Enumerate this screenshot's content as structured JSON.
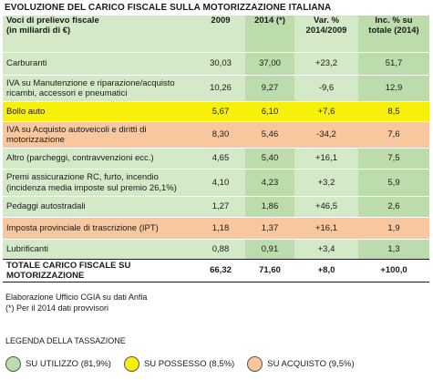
{
  "title": "EVOLUZIONE DEL CARICO FISCALE SULLA MOTORIZZAZIONE ITALIANA",
  "colors": {
    "green": "#bcdcab",
    "green_light": "#d3e9c7",
    "yellow": "#f8f008",
    "orange": "#f9c79e"
  },
  "table": {
    "headers": {
      "label": "Voci di prelievo fiscale\n(in miliardi di €)",
      "y2009": "2009",
      "y2014": "2014 (*)",
      "var": "Var. %\n2014/2009",
      "inc": "Inc. % su\ntotale (2014)"
    },
    "rows": [
      {
        "label": "Carburanti",
        "v2009": "30,03",
        "v2014": "37,00",
        "var": "+23,2",
        "inc": "51,7",
        "category": "utilizzo"
      },
      {
        "label": "IVA su Manutenzione e riparazione/acquisto\nricambi, accessori e pneumatici",
        "v2009": "10,26",
        "v2014": "9,27",
        "var": "-9,6",
        "inc": "12,9",
        "category": "utilizzo"
      },
      {
        "label": "Bollo auto",
        "v2009": "5,67",
        "v2014": "6,10",
        "var": "+7,6",
        "inc": "8,5",
        "category": "possesso"
      },
      {
        "label": "IVA su Acquisto autoveicoli e diritti di\nmotorizzazione",
        "v2009": "8,30",
        "v2014": "5,46",
        "var": "-34,2",
        "inc": "7,6",
        "category": "acquisto"
      },
      {
        "label": "Altro (parcheggi, contravvenzioni ecc.)",
        "v2009": "4,65",
        "v2014": "5,40",
        "var": "+16,1",
        "inc": "7,5",
        "category": "utilizzo"
      },
      {
        "label": "Premi assicurazione RC, furto, incendio\n(incidenza media imposte sul premio 26,1%)",
        "v2009": "4,10",
        "v2014": "4,23",
        "var": "+3,2",
        "inc": "5,9",
        "category": "utilizzo"
      },
      {
        "label": "Pedaggi autostradali",
        "v2009": "1,27",
        "v2014": "1,86",
        "var": "+46,5",
        "inc": "2,6",
        "category": "utilizzo"
      },
      {
        "label": "Imposta provinciale di trascrizione (IPT)",
        "v2009": "1,18",
        "v2014": "1,37",
        "var": "+16,1",
        "inc": "1,9",
        "category": "acquisto"
      },
      {
        "label": "Lubrificanti",
        "v2009": "0,88",
        "v2014": "0,91",
        "var": "+3,4",
        "inc": "1,3",
        "category": "utilizzo"
      }
    ],
    "total": {
      "label": "TOTALE CARICO FISCALE SU\nMOTORIZZAZIONE",
      "v2009": "66,32",
      "v2014": "71,60",
      "var": "+8,0",
      "inc": "+100,0"
    }
  },
  "notes": {
    "source": "Elaborazione Ufficio CGIA su dati Anfia",
    "footnote": "(*) Per il 2014 dati provvisori"
  },
  "legend": {
    "title": "LEGENDA DELLA TASSAZIONE",
    "items": [
      {
        "label": "SU UTILIZZO (81,9%)",
        "color": "#bcdcab"
      },
      {
        "label": "SU POSSESSO (8,5%)",
        "color": "#f8f008"
      },
      {
        "label": "SU ACQUISTO (9,5%)",
        "color": "#f9c79e"
      }
    ]
  }
}
